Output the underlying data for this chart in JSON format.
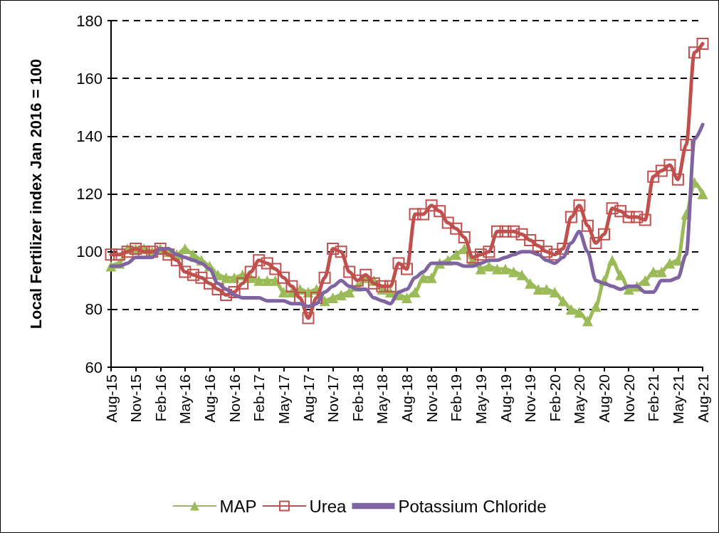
{
  "chart_data": {
    "type": "line",
    "ylabel": "Local Fertilizer index Jan 2016 = 100",
    "categories": [
      "Aug-15",
      null,
      null,
      "Nov-15",
      null,
      null,
      "Feb-16",
      null,
      null,
      "May-16",
      null,
      null,
      "Aug-16",
      null,
      null,
      "Nov-16",
      null,
      null,
      "Feb-17",
      null,
      null,
      "May-17",
      null,
      null,
      "Aug-17",
      null,
      null,
      "Nov-17",
      null,
      null,
      "Feb-18",
      null,
      null,
      "May-18",
      null,
      null,
      "Aug-18",
      null,
      null,
      "Nov-18",
      null,
      null,
      "Feb-19",
      null,
      null,
      "May-19",
      null,
      null,
      "Aug-19",
      null,
      null,
      "Nov-19",
      null,
      null,
      "Feb-20",
      null,
      null,
      "May-20",
      null,
      null,
      "Aug-20",
      null,
      null,
      "Nov-20",
      null,
      null,
      "Feb-21",
      null,
      null,
      "May-21",
      null,
      null,
      "Aug-21"
    ],
    "series": [
      {
        "name": "MAP",
        "color": "#9bbb59",
        "marker": "triangle",
        "values": [
          95,
          96,
          101,
          101,
          101,
          100,
          101,
          100,
          99,
          101,
          99,
          97,
          95,
          92,
          91,
          91,
          92,
          91,
          90,
          90,
          90,
          86,
          86,
          87,
          86,
          87,
          83,
          84,
          85,
          86,
          88,
          91,
          90,
          87,
          86,
          85,
          84,
          86,
          91,
          91,
          96,
          97,
          99,
          101,
          97,
          94,
          95,
          94,
          94,
          93,
          92,
          89,
          87,
          87,
          86,
          83,
          80,
          79,
          76,
          81,
          90,
          97,
          92,
          87,
          88,
          90,
          93,
          93,
          96,
          97,
          113,
          124,
          120
        ]
      },
      {
        "name": "Urea",
        "color": "#c0504d",
        "marker": "square",
        "values": [
          99,
          99,
          100,
          101,
          100,
          100,
          101,
          99,
          97,
          93,
          92,
          91,
          89,
          87,
          85,
          86,
          89,
          93,
          97,
          96,
          94,
          91,
          88,
          84,
          77,
          84,
          91,
          101,
          100,
          93,
          90,
          92,
          89,
          88,
          88,
          96,
          94,
          113,
          113,
          116,
          114,
          110,
          108,
          105,
          98,
          99,
          100,
          107,
          107,
          107,
          106,
          104,
          102,
          100,
          99,
          101,
          112,
          116,
          109,
          103,
          106,
          115,
          114,
          112,
          112,
          111,
          126,
          128,
          130,
          125,
          137,
          169,
          172
        ]
      },
      {
        "name": "Potassium Chloride",
        "color": "#8064a2",
        "marker": "none",
        "values": [
          95,
          95,
          96,
          98,
          98,
          98,
          101,
          101,
          99,
          98,
          97,
          96,
          94,
          89,
          87,
          85,
          84,
          84,
          84,
          83,
          83,
          83,
          82,
          82,
          81,
          82,
          86,
          88,
          90,
          88,
          87,
          87,
          84,
          83,
          82,
          86,
          87,
          91,
          93,
          96,
          96,
          96,
          96,
          95,
          95,
          96,
          97,
          97,
          98,
          99,
          100,
          100,
          99,
          97,
          96,
          98,
          103,
          107,
          100,
          90,
          89,
          88,
          87,
          88,
          88,
          86,
          86,
          90,
          90,
          91,
          99,
          139,
          144
        ]
      }
    ],
    "ylim": [
      60,
      180
    ],
    "yticks": [
      60,
      80,
      100,
      120,
      140,
      160,
      180
    ],
    "grid": "y",
    "legend": "bottom"
  }
}
